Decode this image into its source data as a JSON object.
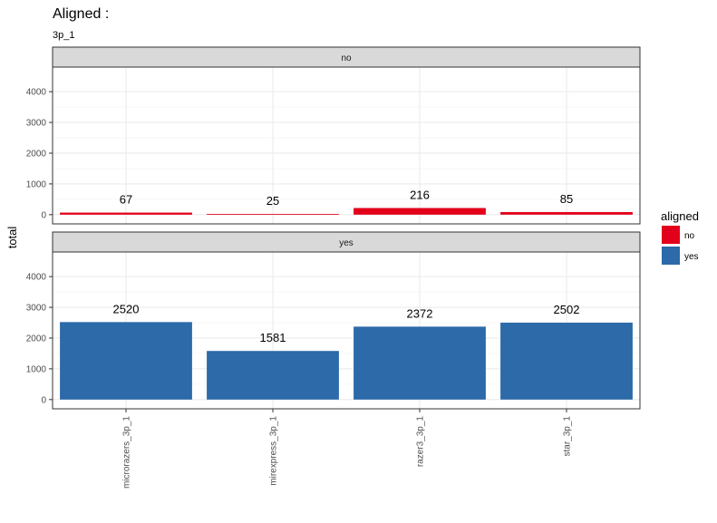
{
  "chart_data": {
    "type": "bar",
    "title": "Aligned :",
    "subtitle": "3p_1",
    "xlabel": "",
    "ylabel": "total",
    "categories": [
      "microrazers_3p_1",
      "mirexpress_3p_1",
      "razer3_3p_1",
      "star_3p_1"
    ],
    "yticks": [
      0,
      1000,
      2000,
      3000,
      4000
    ],
    "ylim": [
      -300,
      4800
    ],
    "grid": true,
    "legend": {
      "title": "aligned",
      "placement": "right",
      "entries": [
        {
          "label": "no",
          "color": "#e3001b"
        },
        {
          "label": "yes",
          "color": "#2c6aa9"
        }
      ]
    },
    "panels": [
      {
        "strip": "no",
        "color": "#e3001b",
        "values": [
          67,
          25,
          216,
          85
        ]
      },
      {
        "strip": "yes",
        "color": "#2c6aa9",
        "values": [
          2520,
          1581,
          2372,
          2502
        ]
      }
    ]
  }
}
